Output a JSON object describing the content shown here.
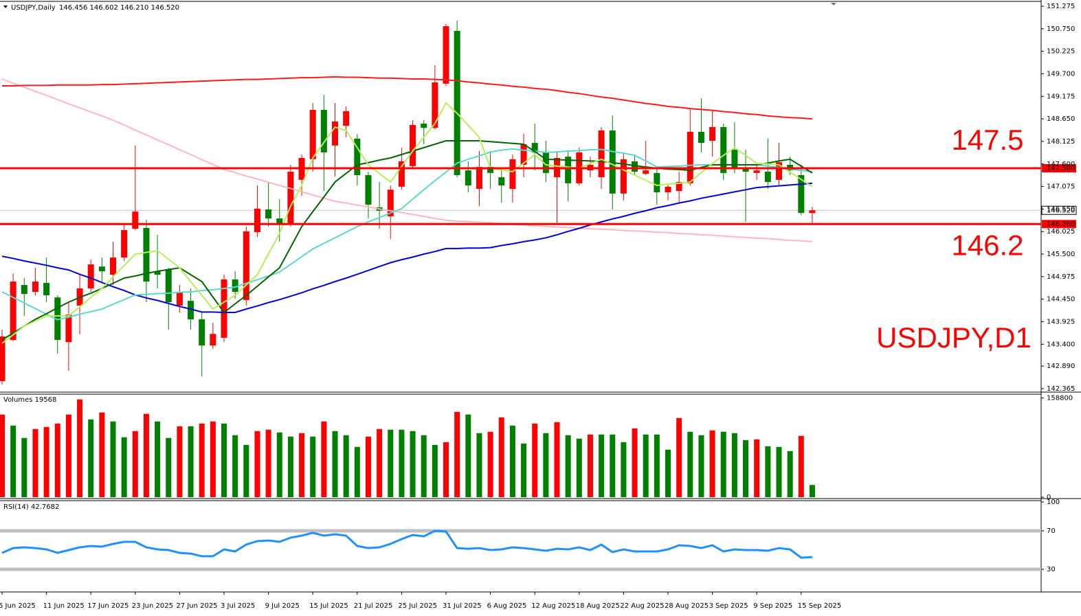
{
  "chart_data": [
    {
      "type": "candlestick",
      "title": "USDJPY,Daily",
      "subtitle": "146.456 146.602 146.210 146.520",
      "annotation": "USDJPY,D1",
      "categories": [
        "5 Jun 2025",
        null,
        null,
        null,
        "11 Jun 2025",
        null,
        null,
        null,
        "17 Jun 2025",
        null,
        null,
        null,
        "23 Jun 2025",
        null,
        null,
        null,
        "27 Jun 2025",
        null,
        null,
        null,
        "3 Jul 2025",
        null,
        null,
        null,
        "9 Jul 2025",
        null,
        null,
        null,
        "15 Jul 2025",
        null,
        null,
        null,
        "21 Jul 2025",
        null,
        null,
        null,
        "25 Jul 2025",
        null,
        null,
        null,
        "31 Jul 2025",
        null,
        null,
        null,
        "6 Aug 2025",
        null,
        null,
        null,
        "12 Aug 2025",
        null,
        null,
        null,
        "18 Aug 2025",
        null,
        null,
        null,
        "22 Aug 2025",
        null,
        null,
        null,
        "28 Aug 2025",
        null,
        null,
        null,
        "3 Sep 2025",
        null,
        null,
        null,
        "9 Sep 2025",
        null,
        null,
        null,
        "15 Sep 2025",
        null
      ],
      "open": [
        142.54,
        143.5,
        144.78,
        144.62,
        144.83,
        144.49,
        143.45,
        144.3,
        144.7,
        145.21,
        145.02,
        145.42,
        146.09,
        146.11,
        145.1,
        145.15,
        144.3,
        144.41,
        143.98,
        143.37,
        143.55,
        144.91,
        144.43,
        146.01,
        146.54,
        146.33,
        146.19,
        147.23,
        147.71,
        148.86,
        148.03,
        148.49,
        148.19,
        147.34,
        146.59,
        146.38,
        147.07,
        147.55,
        148.54,
        148.44,
        149.47,
        150.7,
        147.45,
        147.02,
        147.53,
        147.29,
        147.02,
        147.58,
        148.09,
        147.87,
        147.29,
        147.77,
        147.15,
        147.45,
        147.29,
        148.38,
        146.91,
        147.66,
        147.37,
        147.39,
        146.94,
        146.97,
        147.15,
        148.35,
        148.14,
        148.46,
        147.93,
        147.48,
        147.39,
        147.42,
        147.23,
        147.58,
        147.34,
        146.456
      ],
      "high": [
        143.74,
        145.05,
        144.94,
        145.18,
        145.42,
        144.54,
        144.38,
        145.02,
        145.37,
        145.42,
        145.79,
        146.22,
        148.03,
        146.3,
        145.95,
        145.18,
        144.78,
        144.7,
        144.14,
        143.9,
        145.02,
        145.1,
        146.14,
        147.1,
        147.18,
        146.78,
        147.58,
        147.82,
        149.02,
        149.21,
        149.02,
        148.94,
        148.3,
        147.42,
        147.18,
        147.1,
        147.98,
        148.62,
        148.62,
        149.9,
        150.86,
        150.94,
        147.66,
        147.9,
        147.9,
        147.5,
        147.82,
        148.3,
        148.54,
        148.14,
        147.9,
        147.9,
        147.98,
        147.77,
        148.46,
        148.73,
        147.87,
        147.82,
        148.14,
        147.5,
        147.13,
        147.42,
        148.91,
        149.13,
        148.86,
        148.54,
        148.57,
        147.93,
        147.58,
        148.19,
        148.09,
        147.77,
        147.58,
        146.602
      ],
      "low": [
        142.46,
        143.47,
        144.06,
        144.54,
        144.38,
        143.18,
        142.78,
        143.63,
        144.62,
        144.86,
        144.78,
        145.34,
        146.06,
        144.38,
        144.7,
        143.74,
        144.14,
        143.74,
        142.65,
        143.29,
        143.45,
        144.46,
        144.3,
        145.9,
        146.14,
        145.79,
        146.14,
        146.86,
        147.42,
        146.97,
        147.31,
        148.22,
        147.1,
        146.33,
        146.09,
        145.85,
        147.0,
        147.5,
        148.06,
        148.41,
        149.42,
        147.29,
        146.94,
        146.62,
        147.02,
        146.7,
        146.7,
        147.29,
        147.45,
        147.18,
        146.22,
        146.73,
        147.1,
        147.29,
        147.02,
        146.54,
        146.75,
        147.34,
        147.34,
        146.65,
        146.75,
        146.7,
        147.1,
        147.87,
        147.77,
        147.23,
        147.39,
        146.25,
        147.23,
        147.02,
        147.07,
        147.34,
        146.41,
        146.21
      ],
      "close": [
        143.58,
        144.86,
        144.57,
        144.86,
        144.54,
        143.5,
        144.09,
        144.7,
        145.26,
        145.1,
        145.42,
        146.06,
        146.49,
        144.86,
        145.02,
        144.38,
        144.62,
        143.98,
        143.37,
        143.64,
        144.91,
        144.62,
        146.03,
        146.56,
        146.33,
        146.22,
        147.42,
        147.74,
        148.86,
        147.87,
        148.59,
        148.83,
        147.34,
        146.65,
        146.51,
        147.0,
        147.66,
        148.51,
        148.44,
        149.5,
        150.81,
        147.34,
        147.1,
        147.53,
        147.39,
        147.1,
        147.71,
        148.06,
        147.87,
        147.39,
        147.74,
        147.15,
        147.87,
        147.58,
        148.38,
        146.91,
        147.71,
        147.42,
        147.45,
        146.94,
        147.07,
        147.18,
        148.35,
        148.09,
        148.46,
        147.39,
        147.5,
        147.42,
        147.45,
        147.18,
        147.64,
        147.45,
        146.46,
        146.52
      ],
      "up_color": "#ff0000",
      "down_color": "#008000",
      "series": [
        {
          "color": "#ffb6c1",
          "values": [
            149.58,
            149.48,
            149.39,
            149.29,
            149.2,
            149.1,
            149.0,
            148.91,
            148.81,
            148.72,
            148.62,
            148.51,
            148.39,
            148.28,
            148.16,
            148.05,
            147.93,
            147.82,
            147.7,
            147.59,
            147.47,
            147.4,
            147.32,
            147.25,
            147.17,
            147.1,
            147.03,
            146.95,
            146.88,
            146.8,
            146.73,
            146.69,
            146.64,
            146.6,
            146.55,
            146.51,
            146.47,
            146.42,
            146.38,
            146.33,
            146.29,
            146.27,
            146.26,
            146.24,
            146.23,
            146.21,
            146.19,
            146.18,
            146.16,
            146.15,
            146.13,
            146.12,
            146.1,
            146.09,
            146.08,
            146.07,
            146.05,
            146.04,
            146.03,
            146.01,
            146.0,
            145.98,
            145.97,
            145.95,
            145.94,
            145.92,
            145.9,
            145.89,
            145.87,
            145.86,
            145.84,
            145.82,
            145.81,
            145.79
          ]
        },
        {
          "color": "#ff1a1a",
          "values": [
            149.42,
            149.42,
            149.43,
            149.43,
            149.43,
            149.44,
            149.44,
            149.44,
            149.44,
            149.45,
            149.45,
            149.46,
            149.47,
            149.48,
            149.49,
            149.5,
            149.51,
            149.52,
            149.53,
            149.54,
            149.55,
            149.56,
            149.57,
            149.57,
            149.58,
            149.59,
            149.6,
            149.61,
            149.61,
            149.62,
            149.63,
            149.62,
            149.62,
            149.61,
            149.6,
            149.6,
            149.59,
            149.58,
            149.58,
            149.57,
            149.56,
            149.54,
            149.51,
            149.49,
            149.46,
            149.44,
            149.41,
            149.39,
            149.36,
            149.34,
            149.31,
            149.27,
            149.24,
            149.2,
            149.16,
            149.13,
            149.09,
            149.05,
            149.01,
            148.98,
            148.94,
            148.92,
            148.89,
            148.87,
            148.85,
            148.82,
            148.8,
            148.77,
            148.75,
            148.72,
            148.7,
            148.68,
            148.67,
            148.65
          ]
        },
        {
          "color": "#0000d0",
          "values": [
            145.45,
            145.4,
            145.34,
            145.29,
            145.24,
            145.18,
            145.13,
            145.03,
            144.94,
            144.84,
            144.74,
            144.65,
            144.55,
            144.48,
            144.42,
            144.35,
            144.28,
            144.22,
            144.15,
            144.15,
            144.14,
            144.14,
            144.22,
            144.29,
            144.37,
            144.44,
            144.52,
            144.6,
            144.69,
            144.77,
            144.86,
            144.94,
            145.03,
            145.12,
            145.21,
            145.3,
            145.37,
            145.43,
            145.5,
            145.56,
            145.63,
            145.63,
            145.64,
            145.64,
            145.65,
            145.7,
            145.74,
            145.79,
            145.83,
            145.88,
            145.95,
            146.03,
            146.1,
            146.18,
            146.25,
            146.32,
            146.38,
            146.45,
            146.51,
            146.58,
            146.63,
            146.69,
            146.74,
            146.8,
            146.85,
            146.9,
            146.95,
            147.0,
            147.05,
            147.07,
            147.09,
            147.11,
            147.13,
            147.15
          ]
        },
        {
          "color": "#5ad8d0",
          "values": [
            144.62,
            144.49,
            144.36,
            144.23,
            144.1,
            143.97,
            144.03,
            144.1,
            144.16,
            144.22,
            144.33,
            144.44,
            144.55,
            144.56,
            144.58,
            144.59,
            144.61,
            144.62,
            144.65,
            144.67,
            144.7,
            144.73,
            144.82,
            144.9,
            144.99,
            145.08,
            145.26,
            145.44,
            145.62,
            145.75,
            145.88,
            146.01,
            146.14,
            146.25,
            146.35,
            146.46,
            146.56,
            146.78,
            147.0,
            147.21,
            147.41,
            147.62,
            147.71,
            147.79,
            147.88,
            147.92,
            147.95,
            147.92,
            147.9,
            147.87,
            147.88,
            147.9,
            147.91,
            147.93,
            147.94,
            147.89,
            147.85,
            147.8,
            147.67,
            147.53,
            147.54,
            147.55,
            147.57,
            147.58,
            147.58,
            147.58,
            147.58,
            147.58,
            147.58,
            147.55,
            147.52,
            147.48,
            147.45,
            147.42
          ]
        },
        {
          "color": "#006400",
          "values": [
            143.5,
            143.66,
            143.82,
            143.98,
            144.11,
            144.25,
            144.38,
            144.49,
            144.59,
            144.7,
            144.82,
            144.94,
            144.99,
            145.05,
            145.1,
            145.14,
            145.18,
            145.02,
            144.86,
            144.5,
            144.14,
            144.34,
            144.54,
            144.75,
            144.97,
            145.18,
            145.66,
            146.14,
            146.49,
            146.83,
            147.18,
            147.38,
            147.58,
            147.63,
            147.69,
            147.74,
            147.82,
            147.9,
            147.98,
            148.06,
            148.14,
            148.14,
            148.14,
            148.14,
            148.12,
            148.1,
            148.08,
            148.06,
            147.89,
            147.71,
            147.7,
            147.69,
            147.68,
            147.67,
            147.66,
            147.63,
            147.6,
            147.56,
            147.53,
            147.5,
            147.48,
            147.47,
            147.45,
            147.52,
            147.58,
            147.58,
            147.58,
            147.58,
            147.58,
            147.62,
            147.67,
            147.71,
            147.55,
            147.39
          ]
        },
        {
          "color": "#b4f05a",
          "values": [
            143.42,
            143.62,
            143.82,
            143.94,
            144.06,
            144.06,
            144.06,
            144.27,
            144.49,
            144.7,
            144.97,
            145.23,
            145.5,
            145.54,
            145.58,
            145.38,
            145.18,
            144.86,
            144.54,
            144.22,
            144.38,
            144.54,
            144.78,
            145.02,
            145.5,
            145.98,
            146.62,
            147.1,
            147.74,
            148.1,
            148.46,
            148.38,
            147.98,
            147.58,
            147.38,
            147.18,
            147.54,
            147.9,
            148.22,
            148.54,
            149.02,
            148.78,
            148.5,
            148.22,
            147.5,
            147.46,
            147.42,
            147.62,
            147.82,
            147.58,
            147.55,
            147.53,
            147.5,
            147.61,
            147.71,
            147.59,
            147.46,
            147.34,
            147.22,
            147.1,
            147.13,
            147.15,
            147.18,
            147.4,
            147.61,
            147.8,
            147.98,
            147.8,
            147.61,
            147.6,
            147.58,
            147.41,
            147.24,
            147.07
          ]
        }
      ],
      "ylim": [
        142.3,
        151.388
      ],
      "yticks": [
        151.275,
        {
          "value": 150.75,
          "label": "150.750"
        },
        150.225,
        {
          "value": 149.7,
          "label": "149.700"
        },
        149.175,
        {
          "value": 148.65,
          "label": "148.650"
        },
        148.125,
        {
          "value": 147.6,
          "label": "147.600"
        },
        147.075,
        {
          "value": 146.55,
          "label": "146.550"
        },
        146.025,
        {
          "value": 145.5,
          "label": "145.500"
        },
        144.975,
        {
          "value": 144.45,
          "label": "144.450"
        },
        143.925,
        {
          "value": 143.4,
          "label": "143.400"
        },
        {
          "value": 142.89,
          "label": "142.890"
        },
        142.365
      ],
      "current": {
        "value": 146.52,
        "tag": "146.520",
        "color": "#c0c0c0"
      },
      "hlines": [
        {
          "value": 147.5,
          "label": "147.5",
          "tag": "147.500",
          "color": "#ff0000"
        },
        {
          "value": 146.2,
          "label": "146.2",
          "tag": "146.200",
          "color": "#ff0000"
        }
      ]
    },
    {
      "type": "bar",
      "title": "Volumes 19568",
      "values": [
        132400,
        114700,
        94900,
        109200,
        112500,
        118000,
        132400,
        156600,
        124600,
        135700,
        121300,
        96000,
        105900,
        133500,
        121300,
        94900,
        113600,
        113600,
        118000,
        121300,
        118000,
        99300,
        83800,
        105900,
        108100,
        103700,
        97100,
        102600,
        97100,
        121300,
        105900,
        99300,
        80500,
        97100,
        109200,
        108100,
        108100,
        105900,
        99300,
        83800,
        88200,
        136800,
        132400,
        102600,
        104800,
        127900,
        114700,
        86000,
        118000,
        102600,
        120200,
        99300,
        93800,
        100400,
        100400,
        100400,
        88200,
        110300,
        100400,
        100400,
        76100,
        126800,
        104800,
        99300,
        107000,
        104800,
        102600,
        91500,
        92700,
        81600,
        80500,
        73900,
        98200,
        19568
      ],
      "up_color": "#ff0000",
      "down_color": "#008000",
      "ylim": [
        0,
        165000
      ],
      "yticks": [
        158800,
        0
      ]
    },
    {
      "type": "line",
      "title": "RSI(14) 42.7682",
      "values": [
        47.1,
        52.1,
        52.9,
        52.1,
        50.7,
        47.1,
        50.0,
        52.9,
        54.3,
        53.6,
        56.4,
        58.6,
        58.6,
        52.9,
        50.7,
        50.0,
        47.1,
        46.4,
        43.6,
        43.6,
        50.7,
        48.6,
        55.7,
        59.3,
        60.0,
        58.6,
        62.9,
        65.0,
        67.9,
        65.0,
        66.4,
        65.0,
        54.3,
        52.1,
        52.9,
        56.4,
        61.4,
        65.7,
        64.3,
        70.0,
        69.3,
        52.1,
        51.4,
        52.1,
        50.0,
        50.7,
        52.9,
        52.1,
        50.7,
        49.3,
        51.4,
        50.7,
        52.9,
        50.0,
        55.7,
        47.9,
        50.7,
        48.6,
        48.6,
        48.6,
        50.7,
        55.0,
        54.3,
        52.1,
        55.0,
        48.6,
        50.7,
        50.0,
        50.0,
        49.3,
        52.1,
        50.7,
        42.1,
        42.7682
      ],
      "color": "#1e90ff",
      "ylim": [
        7.9,
        101.4
      ],
      "yticks": [
        100,
        70,
        30
      ],
      "levels": [
        70,
        30
      ],
      "level_color": "#c0c0c0"
    }
  ]
}
